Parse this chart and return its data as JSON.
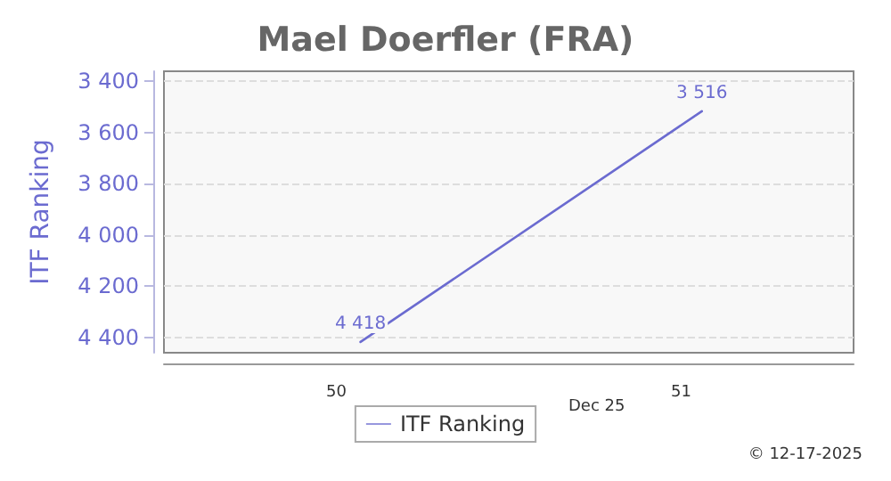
{
  "chart_data": {
    "type": "line",
    "title": "Mael Doerfler (FRA)",
    "ylabel": "ITF Ranking",
    "x": [
      50.07,
      51.06
    ],
    "series": [
      {
        "name": "ITF Ranking",
        "color": "#6b6bd0",
        "values": [
          4418,
          3516
        ],
        "value_labels": [
          "4 418",
          "3 516"
        ]
      }
    ],
    "xlim": [
      49.5,
      51.5
    ],
    "xticks": [
      50,
      51
    ],
    "ylim": [
      4460,
      3360
    ],
    "yticks": [
      {
        "value": 3400,
        "label": "3 400"
      },
      {
        "value": 3600,
        "label": "3 600"
      },
      {
        "value": 3800,
        "label": "3 800"
      },
      {
        "value": 4000,
        "label": "4 000"
      },
      {
        "value": 4200,
        "label": "4 200"
      },
      {
        "value": 4400,
        "label": "4 400"
      }
    ],
    "grid": "y",
    "legend": "bottom",
    "marker": "none",
    "line_style": "solid",
    "annotations": [
      "Dec 25",
      "© 12-17-2025"
    ]
  }
}
